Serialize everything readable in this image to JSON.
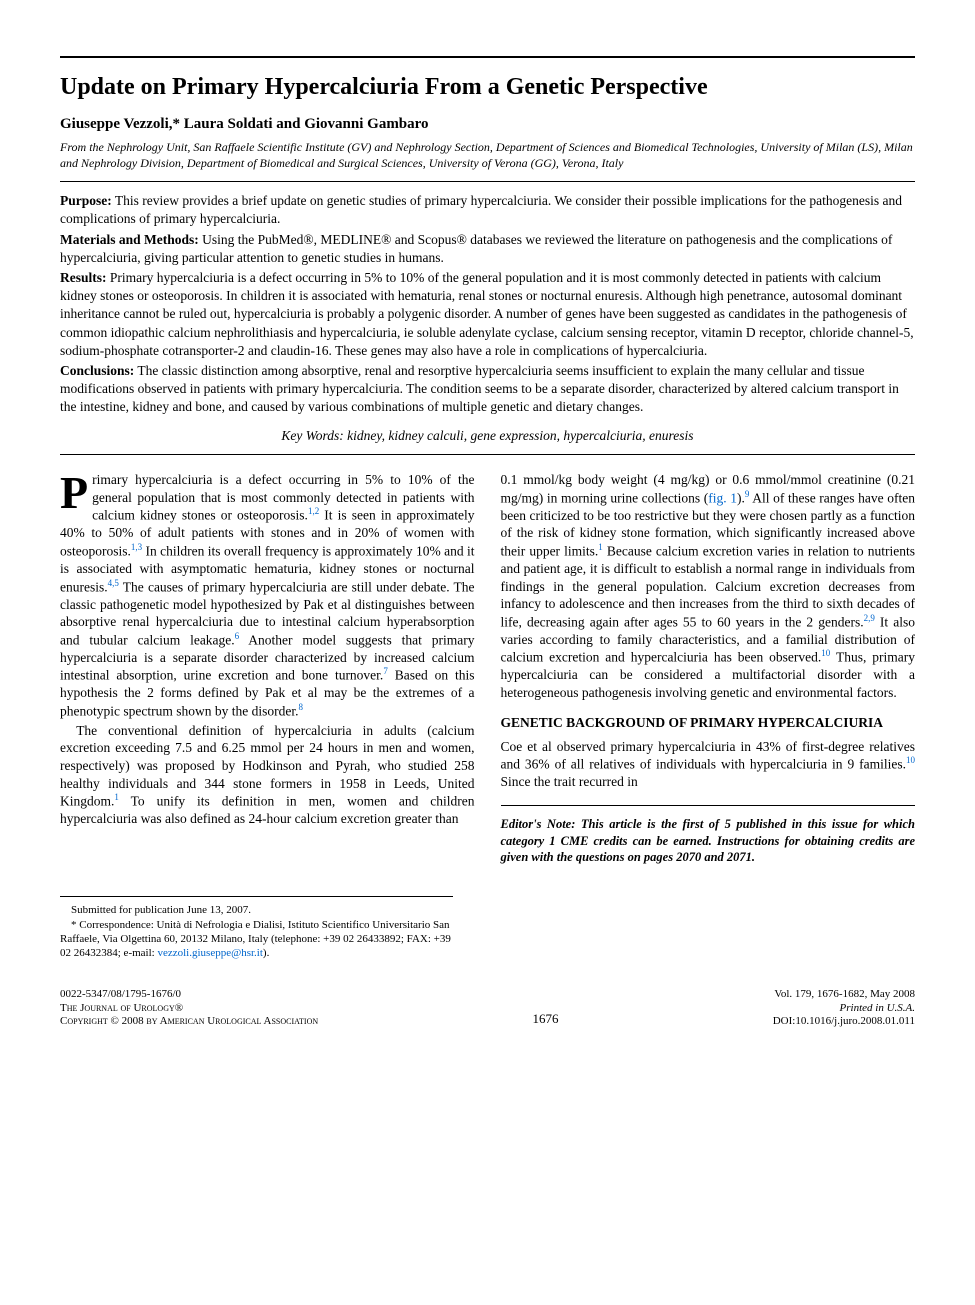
{
  "rule_color": "#000000",
  "link_color": "#0066cc",
  "background_color": "#ffffff",
  "text_color": "#000000",
  "font_family": "Times New Roman",
  "title": "Update on Primary Hypercalciuria From a Genetic Perspective",
  "title_fontsize": 24,
  "authors": "Giuseppe Vezzoli,* Laura Soldati and Giovanni Gambaro",
  "affiliation": "From the Nephrology Unit, San Raffaele Scientific Institute (GV) and Nephrology Section, Department of Sciences and Biomedical Technologies, University of Milan (LS), Milan and Nephrology Division, Department of Biomedical and Surgical Sciences, University of Verona (GG), Verona, Italy",
  "abstract": {
    "purpose": {
      "label": "Purpose:",
      "text": "This review provides a brief update on genetic studies of primary hypercalciuria. We consider their possible implications for the pathogenesis and complications of primary hypercalciuria."
    },
    "materials": {
      "label": "Materials and Methods:",
      "text": "Using the PubMed®, MEDLINE® and Scopus® databases we reviewed the literature on pathogenesis and the complications of hypercalciuria, giving particular attention to genetic studies in humans."
    },
    "results": {
      "label": "Results:",
      "text": "Primary hypercalciuria is a defect occurring in 5% to 10% of the general population and it is most commonly detected in patients with calcium kidney stones or osteoporosis. In children it is associated with hematuria, renal stones or nocturnal enuresis. Although high penetrance, autosomal dominant inheritance cannot be ruled out, hypercalciuria is probably a polygenic disorder. A number of genes have been suggested as candidates in the pathogenesis of common idiopathic calcium nephrolithiasis and hypercalciuria, ie soluble adenylate cyclase, calcium sensing receptor, vitamin D receptor, chloride channel-5, sodium-phosphate cotransporter-2 and claudin-16. These genes may also have a role in complications of hypercalciuria."
    },
    "conclusions": {
      "label": "Conclusions:",
      "text": "The classic distinction among absorptive, renal and resorptive hypercalciuria seems insufficient to explain the many cellular and tissue modifications observed in patients with primary hypercalciuria. The condition seems to be a separate disorder, characterized by altered calcium transport in the intestine, kidney and bone, and caused by various combinations of multiple genetic and dietary changes."
    }
  },
  "keywords": "Key Words: kidney, kidney calculi, gene expression, hypercalciuria, enuresis",
  "body": {
    "p1a": "Primary hypercalciuria is a defect occurring in 5% to 10% of the general population that is most commonly detected in patients with calcium kidney stones or osteoporosis.",
    "r1": "1,2",
    "p1b": " It is seen in approximately 40% to 50% of adult patients with stones and in 20% of women with osteoporosis.",
    "r2": "1,3",
    "p1c": " In children its overall frequency is approximately 10% and it is associated with asymptomatic hematuria, kidney stones or nocturnal enuresis.",
    "r3": "4,5",
    "p1d": " The causes of primary hypercalciuria are still under debate. The classic pathogenetic model hypothesized by Pak et al distinguishes between absorptive renal hypercalciuria due to intestinal calcium hyperabsorption and tubular calcium leakage.",
    "r4": "6",
    "p1e": " Another model suggests that primary hypercalciuria is a separate disorder characterized by increased calcium intestinal absorption, urine excretion and bone turnover.",
    "r5": "7",
    "p1f": " Based on this hypothesis the 2 forms defined by Pak et al may be the extremes of a phenotypic spectrum shown by the disorder.",
    "r6": "8",
    "p2a": "The conventional definition of hypercalciuria in adults (calcium excretion exceeding 7.5 and 6.25 mmol per 24 hours in men and women, respectively) was proposed by Hodkinson and Pyrah, who studied 258 healthy individuals and 344 stone formers in 1958 in Leeds, United Kingdom.",
    "r7": "1",
    "p2b": " To unify its definition in men, women and children hypercalciuria was also defined as 24-hour calcium excretion greater than ",
    "p3a": "0.1 mmol/kg body weight (4 mg/kg) or 0.6 mmol/mmol creatinine (0.21 mg/mg) in morning urine collections (",
    "fig1": "fig. 1",
    "p3aa": ").",
    "r8": "9",
    "p3b": " All of these ranges have often been criticized to be too restrictive but they were chosen partly as a function of the risk of kidney stone formation, which significantly increased above their upper limits.",
    "r9": "1",
    "p3c": " Because calcium excretion varies in relation to nutrients and patient age, it is difficult to establish a normal range in individuals from findings in the general population. Calcium excretion decreases from infancy to adolescence and then increases from the third to sixth decades of life, decreasing again after ages 55 to 60 years in the 2 genders.",
    "r10": "2,9",
    "p3d": " It also varies according to family characteristics, and a familial distribution of calcium excretion and hypercalciuria has been observed.",
    "r11": "10",
    "p3e": " Thus, primary hypercalciuria can be considered a multifactorial disorder with a heterogeneous pathogenesis involving genetic and environmental factors.",
    "sec_head": "GENETIC BACKGROUND OF PRIMARY HYPERCALCIURIA",
    "p4a": "Coe et al observed primary hypercalciuria in 43% of first-degree relatives and 36% of all relatives of individuals with hypercalciuria in 9 families.",
    "r12": "10",
    "p4b": " Since the trait recurred in"
  },
  "editors_note": "Editor's Note: This article is the first of 5 published in this issue for which category 1 CME credits can be earned. Instructions for obtaining credits are given with the questions on pages 2070 and 2071.",
  "footnotes": {
    "submitted": "Submitted for publication June 13, 2007.",
    "correspondence": "* Correspondence: Unità di Nefrologia e Dialisi, Istituto Scientifico Universitario San Raffaele, Via Olgettina 60, 20132 Milano, Italy (telephone: +39 02 26433892; FAX: +39 02 26432384; e-mail: ",
    "email": "vezzoli.giuseppe@hsr.it",
    "closeparen": ")."
  },
  "footer": {
    "issn": "0022-5347/08/1795-1676/0",
    "journal1": "The Journal of Urology",
    "journal2": "®",
    "copyright": "Copyright © 2008 by American Urological Association",
    "page": "1676",
    "vol": "Vol. 179, 1676-1682, May 2008",
    "printed": "Printed in U.S.A.",
    "doi": "DOI:10.1016/j.juro.2008.01.011"
  }
}
